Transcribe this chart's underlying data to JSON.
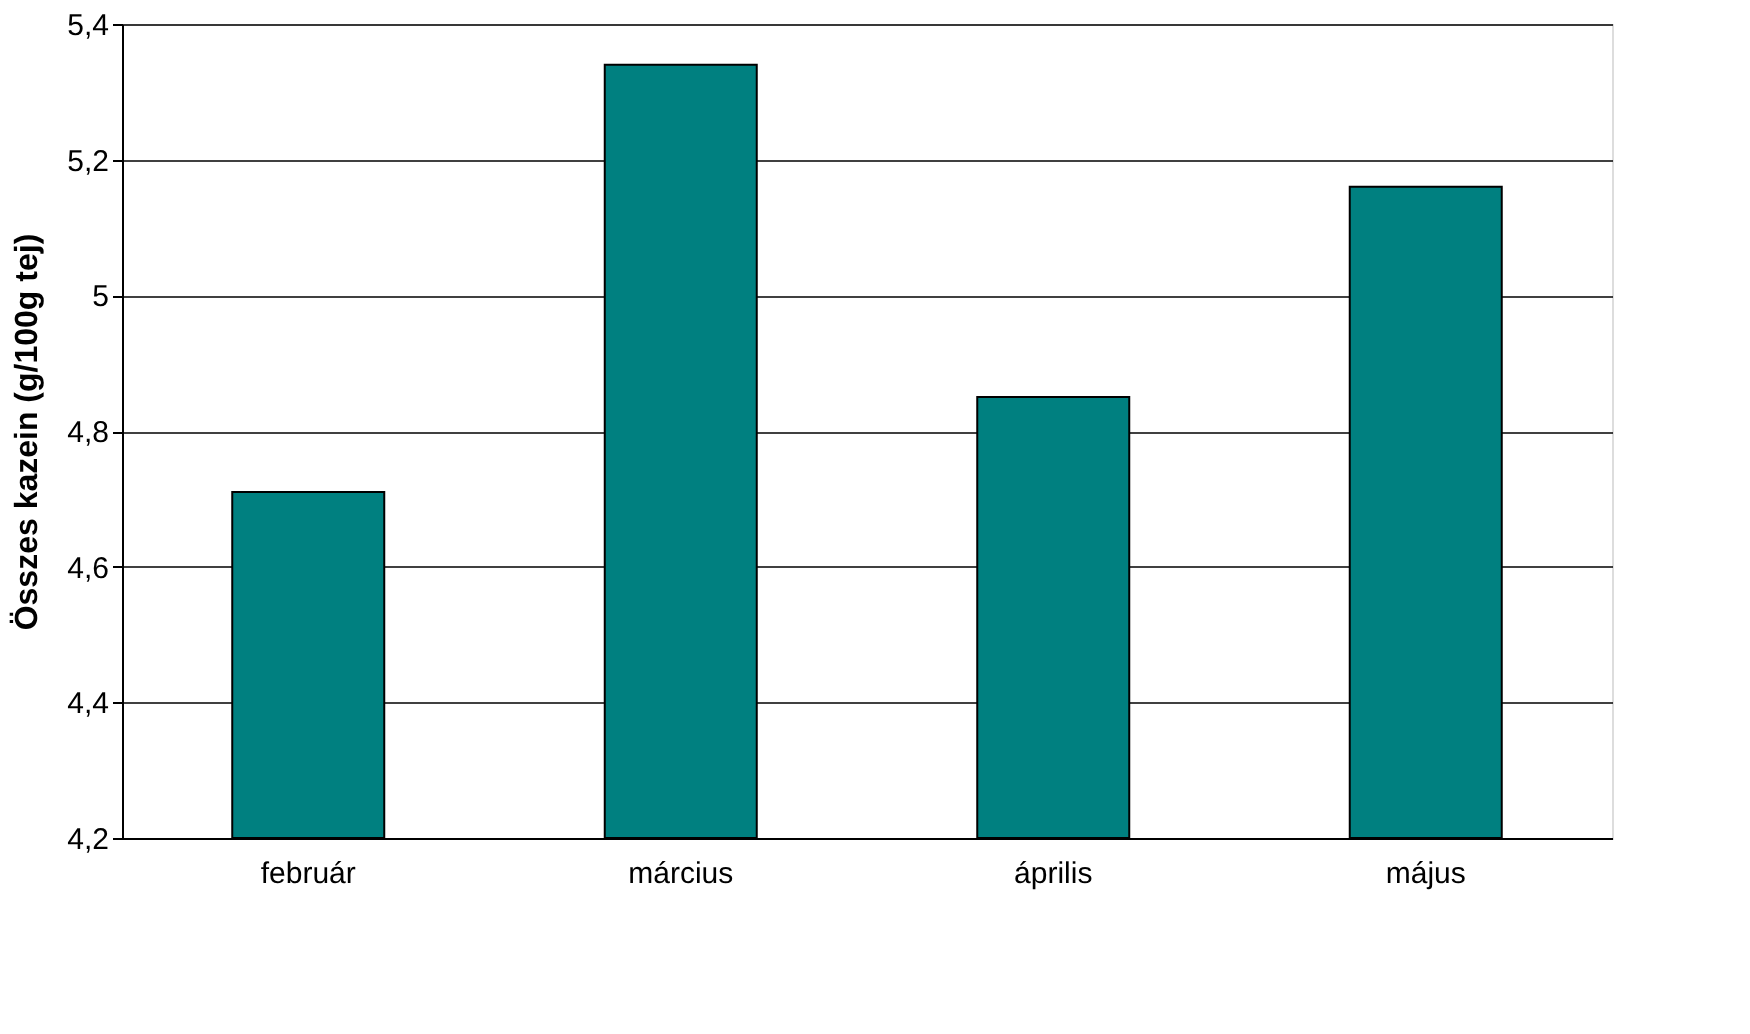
{
  "chart_data": {
    "type": "bar",
    "ylabel": "Összes kazein (g/100g tej)",
    "categories": [
      "február",
      "március",
      "április",
      "május"
    ],
    "values": [
      4.71,
      5.34,
      4.85,
      5.16
    ],
    "color": "#008080",
    "ylim": [
      4.2,
      5.4
    ],
    "yticks": [
      {
        "value": 4.2,
        "label": "4,2"
      },
      {
        "value": 4.4,
        "label": "4,4"
      },
      {
        "value": 4.6,
        "label": "4,6"
      },
      {
        "value": 4.8,
        "label": "4,8"
      },
      5,
      {
        "value": 5.2,
        "label": "5,2"
      },
      {
        "value": 5.4,
        "label": "5,4"
      }
    ],
    "grid": "y"
  }
}
